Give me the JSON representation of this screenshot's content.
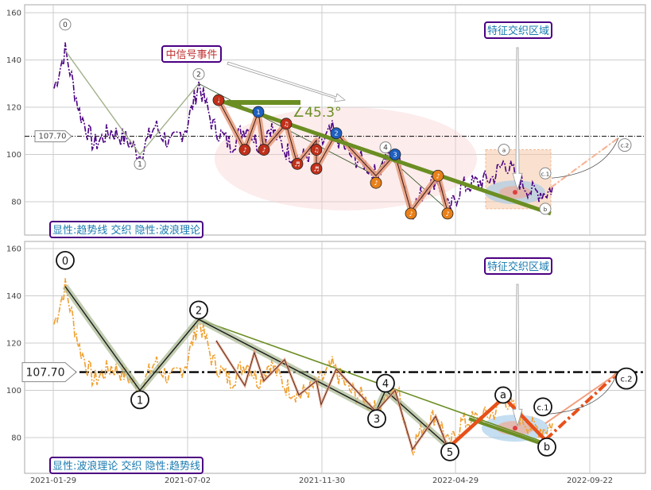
{
  "chart_data": [
    {
      "type": "line",
      "panel": "top",
      "ylim": [
        66,
        164
      ],
      "yticks": [
        80,
        100,
        120,
        140,
        160
      ],
      "grid": true,
      "reference_line": {
        "value": 107.7,
        "label": "107.70"
      },
      "series": [
        {
          "values_key": "price",
          "style": "dash-dot",
          "color": "#4b0082"
        }
      ],
      "wave_points": [
        {
          "label": "0",
          "date_index": 0,
          "value": 144
        },
        {
          "label": "1",
          "date_index": 1,
          "value": 100
        },
        {
          "label": "2",
          "date_index": 2,
          "value": 130
        },
        {
          "label": "3",
          "date_index": 3,
          "value": 91
        },
        {
          "label": "4",
          "date_index": 4,
          "value": 100
        },
        {
          "label": "5",
          "date_index": 5,
          "value": 76
        }
      ],
      "abc_points": [
        {
          "label": "a",
          "value": 97
        },
        {
          "label": "b",
          "value": 77
        },
        {
          "label": "c.1",
          "value": 86
        },
        {
          "label": "c.2",
          "value": 105
        }
      ],
      "trend_angle": "∠45.3°",
      "annotations": [
        "中信号事件",
        "特征交织区域"
      ],
      "legend_box": "显性:趋势线 交织 隐性:波浪理论",
      "music_markers": [
        "♩",
        "♪",
        "♫",
        "♬"
      ]
    },
    {
      "type": "line",
      "panel": "bottom",
      "ylim": [
        66,
        164
      ],
      "yticks": [
        80,
        100,
        120,
        140,
        160
      ],
      "grid": true,
      "reference_line": {
        "value": 107.7,
        "label": "107.70"
      },
      "series": [
        {
          "values_key": "price",
          "style": "dash-dot",
          "color": "#f0b040"
        }
      ],
      "wave_points": [
        {
          "label": "0",
          "value": 144
        },
        {
          "label": "1",
          "value": 100
        },
        {
          "label": "2",
          "value": 130
        },
        {
          "label": "3",
          "value": 91
        },
        {
          "label": "4",
          "value": 100
        },
        {
          "label": "5",
          "value": 76
        }
      ],
      "abc_points": [
        {
          "label": "a",
          "value": 97
        },
        {
          "label": "b",
          "value": 77
        },
        {
          "label": "c.1",
          "value": 86
        },
        {
          "label": "c.2",
          "value": 105
        }
      ],
      "annotations": [
        "特征交织区域"
      ],
      "legend_box": "显性:波浪理论 交织 隐性:趋势线"
    }
  ],
  "x_ticks": [
    "2021-01-29",
    "2021-07-02",
    "2021-11-30",
    "2022-04-29",
    "2022-09-22"
  ],
  "colors": {
    "grid": "#cccccc",
    "purple": "#4b0082",
    "olive": "#6b8e23",
    "orange_red": "#e8501a",
    "orange": "#f0a030",
    "salmon": "#e8a080",
    "sage": "#a8b890",
    "box_border": "#4b0082",
    "box_text": "#1a7ab0",
    "event_text": "#c03030"
  },
  "labels": {
    "top_legend": "显性:趋势线 交织 隐性:波浪理论",
    "bottom_legend": "显性:波浪理论 交织 隐性:趋势线",
    "event": "中信号事件",
    "feature_top": "特征交织区域",
    "feature_bottom": "特征交织区域",
    "angle": "∠45.3°",
    "ref_top": "107.70",
    "ref_bottom": "107.70",
    "y_ticks": [
      "160",
      "140",
      "120",
      "100",
      "80"
    ]
  }
}
